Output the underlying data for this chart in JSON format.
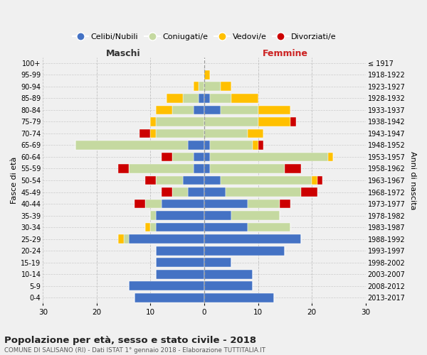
{
  "age_groups": [
    "0-4",
    "5-9",
    "10-14",
    "15-19",
    "20-24",
    "25-29",
    "30-34",
    "35-39",
    "40-44",
    "45-49",
    "50-54",
    "55-59",
    "60-64",
    "65-69",
    "70-74",
    "75-79",
    "80-84",
    "85-89",
    "90-94",
    "95-99",
    "100+"
  ],
  "birth_years": [
    "2013-2017",
    "2008-2012",
    "2003-2007",
    "1998-2002",
    "1993-1997",
    "1988-1992",
    "1983-1987",
    "1978-1982",
    "1973-1977",
    "1968-1972",
    "1963-1967",
    "1958-1962",
    "1953-1957",
    "1948-1952",
    "1943-1947",
    "1938-1942",
    "1933-1937",
    "1928-1932",
    "1923-1927",
    "1918-1922",
    "≤ 1917"
  ],
  "males": {
    "celibi": [
      13,
      14,
      9,
      9,
      9,
      14,
      9,
      9,
      8,
      3,
      4,
      2,
      2,
      3,
      0,
      0,
      2,
      1,
      0,
      0,
      0
    ],
    "coniugati": [
      0,
      0,
      0,
      0,
      0,
      1,
      1,
      1,
      3,
      3,
      5,
      12,
      4,
      21,
      9,
      9,
      4,
      3,
      1,
      0,
      0
    ],
    "vedovi": [
      0,
      0,
      0,
      0,
      0,
      1,
      1,
      0,
      0,
      0,
      0,
      0,
      0,
      0,
      1,
      1,
      3,
      3,
      1,
      0,
      0
    ],
    "divorziati": [
      0,
      0,
      0,
      0,
      0,
      0,
      0,
      0,
      2,
      2,
      2,
      2,
      2,
      0,
      2,
      0,
      0,
      0,
      0,
      0,
      0
    ]
  },
  "females": {
    "nubili": [
      13,
      9,
      9,
      5,
      15,
      18,
      8,
      5,
      8,
      4,
      3,
      1,
      1,
      1,
      0,
      0,
      3,
      1,
      0,
      0,
      0
    ],
    "coniugate": [
      0,
      0,
      0,
      0,
      0,
      0,
      8,
      9,
      6,
      14,
      17,
      14,
      22,
      8,
      8,
      10,
      7,
      4,
      3,
      0,
      0
    ],
    "vedove": [
      0,
      0,
      0,
      0,
      0,
      0,
      0,
      0,
      0,
      0,
      1,
      0,
      1,
      1,
      3,
      6,
      6,
      5,
      2,
      1,
      0
    ],
    "divorziate": [
      0,
      0,
      0,
      0,
      0,
      0,
      0,
      0,
      2,
      3,
      1,
      3,
      0,
      1,
      0,
      1,
      0,
      0,
      0,
      0,
      0
    ]
  },
  "colors": {
    "celibi": "#4472c4",
    "coniugati": "#c5d9a0",
    "vedovi": "#ffc000",
    "divorziati": "#cc0000"
  },
  "xlim": 30,
  "title": "Popolazione per età, sesso e stato civile - 2018",
  "subtitle": "COMUNE DI SALISANO (RI) - Dati ISTAT 1° gennaio 2018 - Elaborazione TUTTITALIA.IT",
  "legend_labels": [
    "Celibi/Nubili",
    "Coniugati/e",
    "Vedovi/e",
    "Divorziati/e"
  ],
  "xlabel_left": "Maschi",
  "xlabel_right": "Femmine",
  "ylabel_left": "Fasce di età",
  "ylabel_right": "Anni di nascita",
  "background_color": "#f0f0f0"
}
